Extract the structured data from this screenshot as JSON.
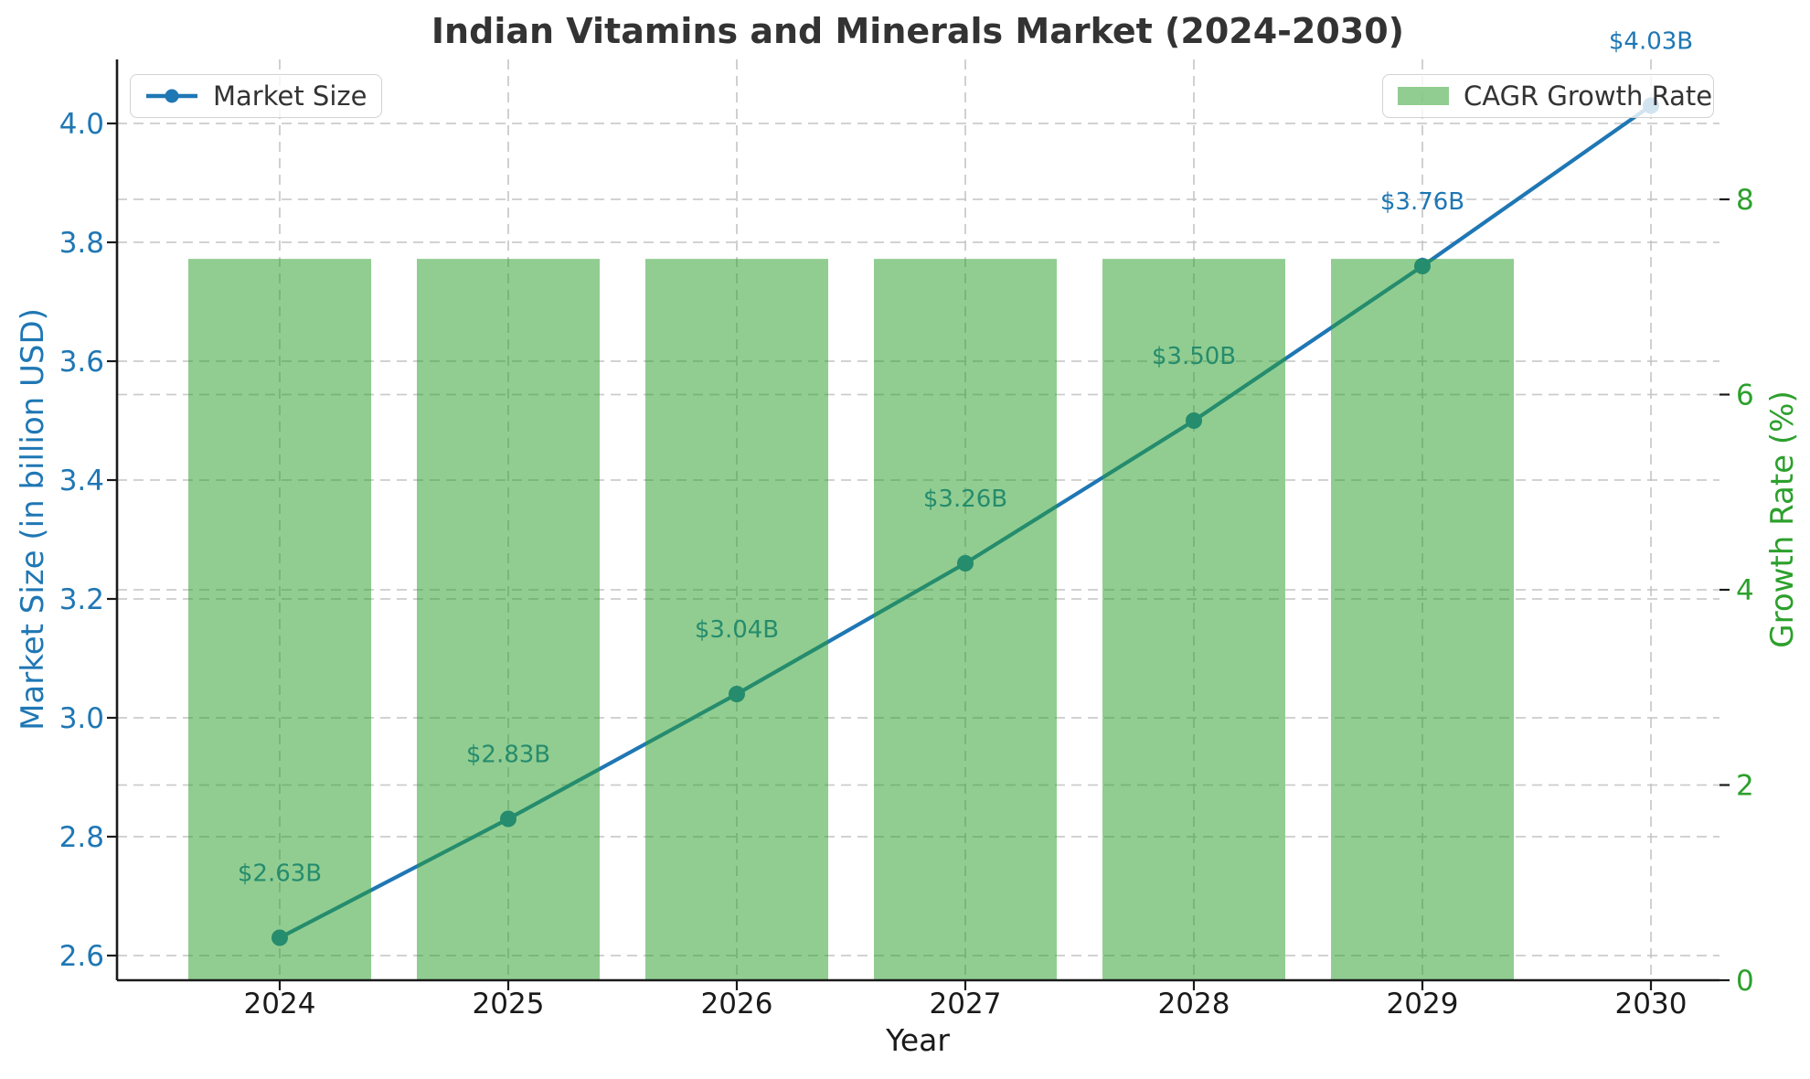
{
  "chart_data": {
    "type": "line+bar dual-axis combo",
    "title": "Indian Vitamins and Minerals Market (2024-2030)",
    "x": [
      2024,
      2025,
      2026,
      2027,
      2028,
      2029,
      2030
    ],
    "series": [
      {
        "name": "Market Size",
        "type": "line",
        "axis": "left",
        "values": [
          2.63,
          2.83,
          3.04,
          3.26,
          3.5,
          3.76,
          4.03
        ],
        "point_labels": [
          "$2.63B",
          "$2.83B",
          "$3.04B",
          "$3.26B",
          "$3.50B",
          "$3.76B",
          "$4.03B"
        ]
      },
      {
        "name": "CAGR Growth Rate",
        "type": "bar",
        "axis": "right",
        "x": [
          2024,
          2025,
          2026,
          2027,
          2028,
          2029
        ],
        "values": [
          7.39,
          7.39,
          7.39,
          7.39,
          7.39,
          7.39
        ]
      }
    ],
    "x_axis": {
      "label": "Year",
      "tick_labels": [
        "2024",
        "2025",
        "2026",
        "2027",
        "2028",
        "2029",
        "2030"
      ]
    },
    "left_axis": {
      "label": "Market Size (in billion USD)",
      "ticks": [
        2.6,
        2.8,
        3.0,
        3.2,
        3.4,
        3.6,
        3.8,
        4.0
      ],
      "tick_labels": [
        "2.6",
        "2.8",
        "3.0",
        "3.2",
        "3.4",
        "3.6",
        "3.8",
        "4.0"
      ],
      "range": [
        2.56,
        4.11
      ]
    },
    "right_axis": {
      "label": "Growth Rate (%)",
      "ticks": [
        0,
        2,
        4,
        6,
        8
      ],
      "tick_labels": [
        "0",
        "2",
        "4",
        "6",
        "8"
      ],
      "range": [
        0,
        9.43
      ]
    },
    "grid": true,
    "legend": {
      "market_size_position": "upper left",
      "cagr_position": "upper right"
    },
    "colors": {
      "line": "#1f77b4",
      "bar_fill": "rgba(44,160,44,0.52)",
      "left_axis_text": "#1f77b4",
      "right_axis_text": "#2ca02c",
      "x_axis_text": "#1a1a1a",
      "title_text": "#333333",
      "gridline": "#c3c3c3"
    }
  }
}
